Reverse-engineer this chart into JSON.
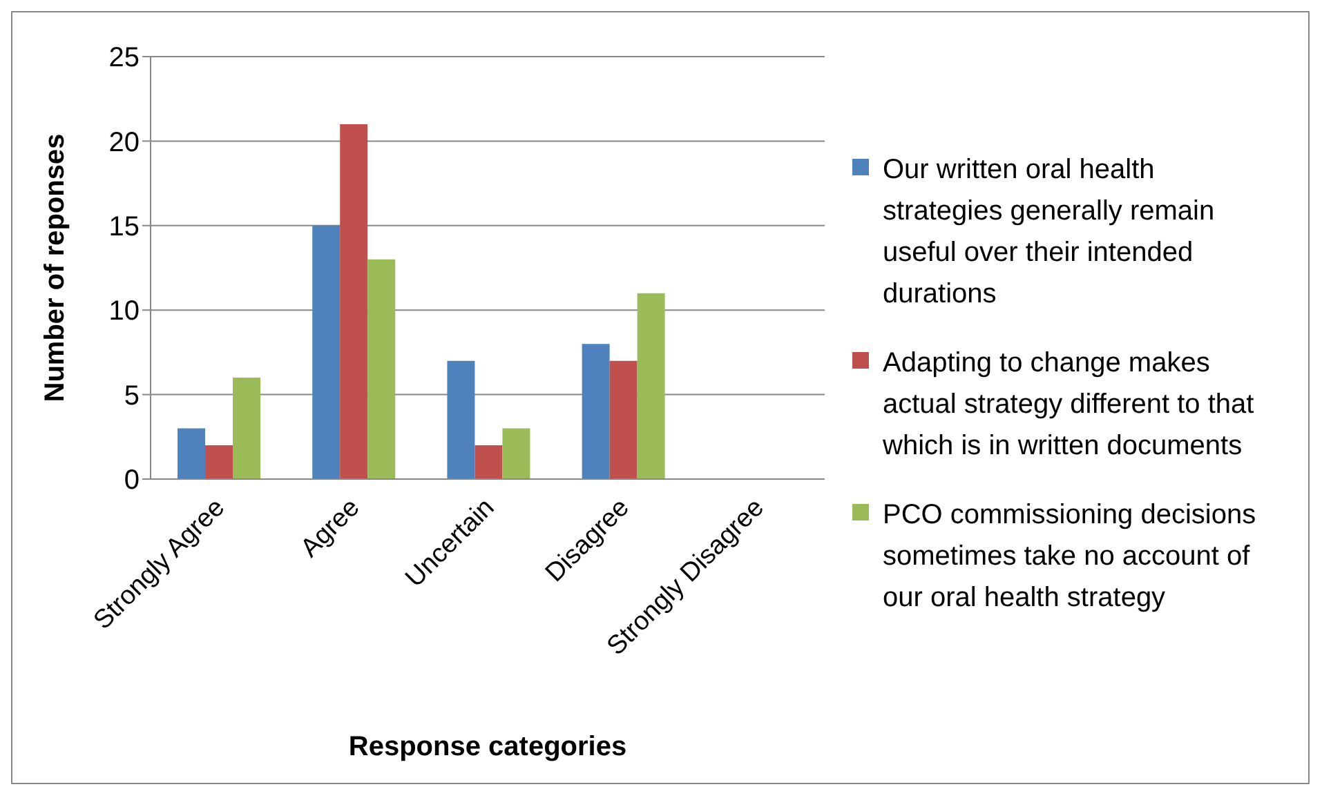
{
  "chart_data": {
    "type": "bar",
    "xlabel": "Response categories",
    "ylabel": "Number of reponses",
    "categories": [
      "Strongly Agree",
      "Agree",
      "Uncertain",
      "Disagree",
      "Strongly Disagree"
    ],
    "series": [
      {
        "name": "Our written oral health strategies generally remain useful over their intended durations",
        "color": "#4f81bd",
        "values": [
          3,
          15,
          7,
          8,
          0
        ]
      },
      {
        "name": "Adapting to change makes actual strategy different to that which is in written documents",
        "color": "#c0504d",
        "values": [
          2,
          21,
          2,
          7,
          0
        ]
      },
      {
        "name": "PCO commissioning decisions sometimes take no account of our oral health strategy",
        "color": "#9bbb59",
        "values": [
          6,
          13,
          3,
          11,
          0
        ]
      }
    ],
    "ylim": [
      0,
      25
    ],
    "yticks": [
      0,
      5,
      10,
      15,
      20,
      25
    ],
    "grid": "y",
    "legend": "right"
  }
}
